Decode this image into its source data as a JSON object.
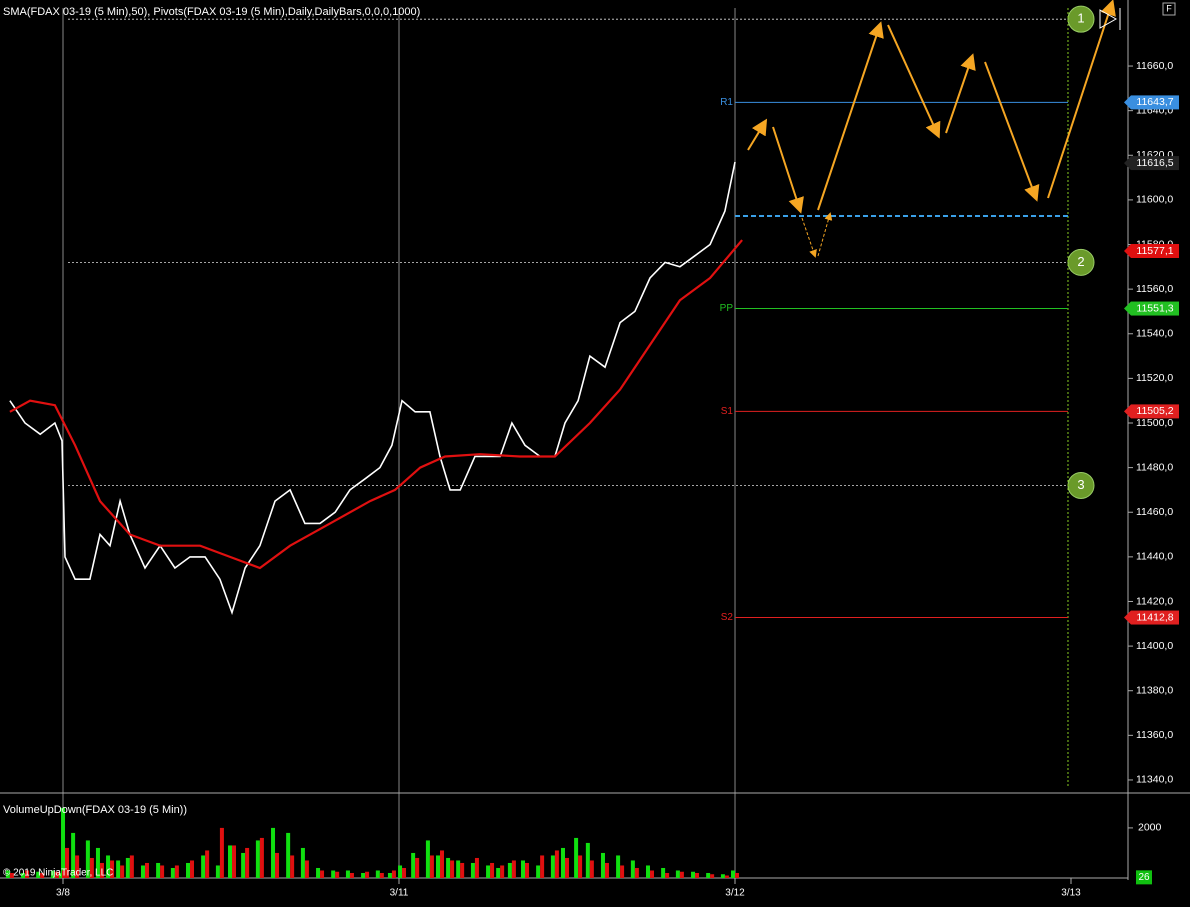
{
  "chart_data": [
    {
      "type": "line",
      "title": "SMA(FDAX 03-19 (5 Min),50), Pivots(FDAX 03-19 (5 Min),Daily,DailyBars,0,0,0,1000)",
      "xlim": [
        -0.1875,
        3.1696
      ],
      "xticks": [
        {
          "value": 0,
          "label": "3/8"
        },
        {
          "value": 1,
          "label": "3/11"
        },
        {
          "value": 2,
          "label": "3/12"
        },
        {
          "value": 3,
          "label": "3/13"
        }
      ],
      "ylim": [
        11335.5,
        11689.6
      ],
      "yticks": [
        {
          "value": 11340,
          "label": "11340,0"
        },
        {
          "value": 11360,
          "label": "11360,0"
        },
        {
          "value": 11380,
          "label": "11380,0"
        },
        {
          "value": 11400,
          "label": "11400,0"
        },
        {
          "value": 11420,
          "label": "11420,0"
        },
        {
          "value": 11440,
          "label": "11440,0"
        },
        {
          "value": 11460,
          "label": "11460,0"
        },
        {
          "value": 11480,
          "label": "11480,0"
        },
        {
          "value": 11500,
          "label": "11500,0"
        },
        {
          "value": 11520,
          "label": "11520,0"
        },
        {
          "value": 11540,
          "label": "11540,0"
        },
        {
          "value": 11560,
          "label": "11560,0"
        },
        {
          "value": 11580,
          "label": "11580,0"
        },
        {
          "value": 11600,
          "label": "11600,0"
        },
        {
          "value": 11620,
          "label": "11620,0"
        },
        {
          "value": 11640,
          "label": "11640,0"
        },
        {
          "value": 11660,
          "label": "11660,0"
        }
      ],
      "series": [
        {
          "color": "#ffffff",
          "x": [
            -0.158,
            -0.113,
            -0.068,
            -0.024,
            -0.003,
            0.006,
            0.036,
            0.08,
            0.11,
            0.14,
            0.17,
            0.199,
            0.244,
            0.289,
            0.333,
            0.378,
            0.423,
            0.467,
            0.503,
            0.542,
            0.586,
            0.631,
            0.676,
            0.72,
            0.765,
            0.81,
            0.854,
            0.899,
            0.943,
            0.979,
            1.009,
            1.048,
            1.092,
            1.122,
            1.152,
            1.182,
            1.226,
            1.271,
            1.301,
            1.336,
            1.375,
            1.42,
            1.464,
            1.494,
            1.533,
            1.568,
            1.613,
            1.658,
            1.702,
            1.747,
            1.792,
            1.836,
            1.881,
            1.926,
            1.97,
            2.0
          ],
          "values": [
            11510,
            11500,
            11495,
            11500,
            11492,
            11440,
            11430,
            11430,
            11450,
            11445,
            11465,
            11450,
            11435,
            11445,
            11435,
            11440,
            11440,
            11430,
            11415,
            11435,
            11445,
            11465,
            11470,
            11455,
            11455,
            11460,
            11470,
            11475,
            11480,
            11490,
            11510,
            11505,
            11505,
            11485,
            11470,
            11470,
            11485,
            11485,
            11485,
            11500,
            11490,
            11485,
            11485,
            11500,
            11510,
            11530,
            11525,
            11545,
            11550,
            11565,
            11572,
            11570,
            11575,
            11580,
            11595,
            11617
          ]
        },
        {
          "color": "#e01010",
          "x": [
            -0.158,
            -0.098,
            -0.024,
            0.036,
            0.11,
            0.199,
            0.289,
            0.408,
            0.497,
            0.586,
            0.676,
            0.795,
            0.914,
            0.988,
            1.063,
            1.137,
            1.241,
            1.36,
            1.464,
            1.568,
            1.658,
            1.747,
            1.836,
            1.926,
            2.021
          ],
          "values": [
            11505,
            11510,
            11508,
            11490,
            11465,
            11450,
            11445,
            11445,
            11440,
            11435,
            11445,
            11455,
            11465,
            11470,
            11480,
            11485,
            11486,
            11485,
            11485,
            11500,
            11515,
            11535,
            11555,
            11565,
            11582
          ]
        }
      ],
      "pivot_x": [
        2.0,
        2.991
      ],
      "pivots": [
        {
          "name": "R1",
          "value": 11643.7,
          "value_label": "11643,7",
          "color": "#3a8fe0"
        },
        {
          "name": "PP",
          "value": 11551.3,
          "value_label": "11551,3",
          "color": "#22c022"
        },
        {
          "name": "S1",
          "value": 11505.2,
          "value_label": "11505,2",
          "color": "#e02020"
        },
        {
          "name": "S2",
          "value": 11412.8,
          "value_label": "11412,8",
          "color": "#e02020"
        }
      ],
      "last_price": {
        "value": 11616.5,
        "label": "11616,5"
      },
      "sma_last": {
        "value": 11577.1,
        "label": "11577,1"
      },
      "target_line": 11592.8,
      "forecast_x": 2.991,
      "markers": [
        {
          "label": "1",
          "value": 11681
        },
        {
          "label": "2",
          "value": 11572
        },
        {
          "label": "3",
          "value": 11472
        }
      ]
    },
    {
      "type": "bar",
      "title": "VolumeUpDown(FDAX 03-19 (5 Min))",
      "ylim": [
        0,
        3234
      ],
      "yticks": [
        2000
      ],
      "series": [
        {
          "color": "#10e010",
          "values": [
            300,
            200,
            250,
            300,
            200,
            2800,
            1800,
            1500,
            1200,
            900,
            700,
            800,
            500,
            600,
            400,
            600,
            900,
            500,
            1300,
            1000,
            1500,
            2000,
            1800,
            1200,
            400,
            300,
            300,
            200,
            300,
            200,
            500,
            1000,
            1500,
            900,
            800,
            700,
            600,
            500,
            400,
            600,
            700,
            500,
            900,
            1200,
            1600,
            1400,
            1000,
            900,
            700,
            500,
            400,
            300,
            250,
            200,
            150,
            300
          ]
        },
        {
          "color": "#e01010",
          "values": [
            200,
            300,
            200,
            250,
            300,
            1200,
            900,
            800,
            600,
            700,
            500,
            900,
            600,
            500,
            500,
            700,
            1100,
            2000,
            1300,
            1200,
            1600,
            1000,
            900,
            700,
            300,
            250,
            200,
            250,
            200,
            300,
            400,
            800,
            900,
            1100,
            700,
            600,
            800,
            600,
            500,
            700,
            600,
            900,
            1100,
            800,
            900,
            700,
            600,
            500,
            400,
            300,
            200,
            250,
            200,
            150,
            100,
            200
          ]
        }
      ],
      "last_volume": 26
    }
  ],
  "copyright": "© 2019 NinjaTrader, LLC",
  "corner_button": "F"
}
